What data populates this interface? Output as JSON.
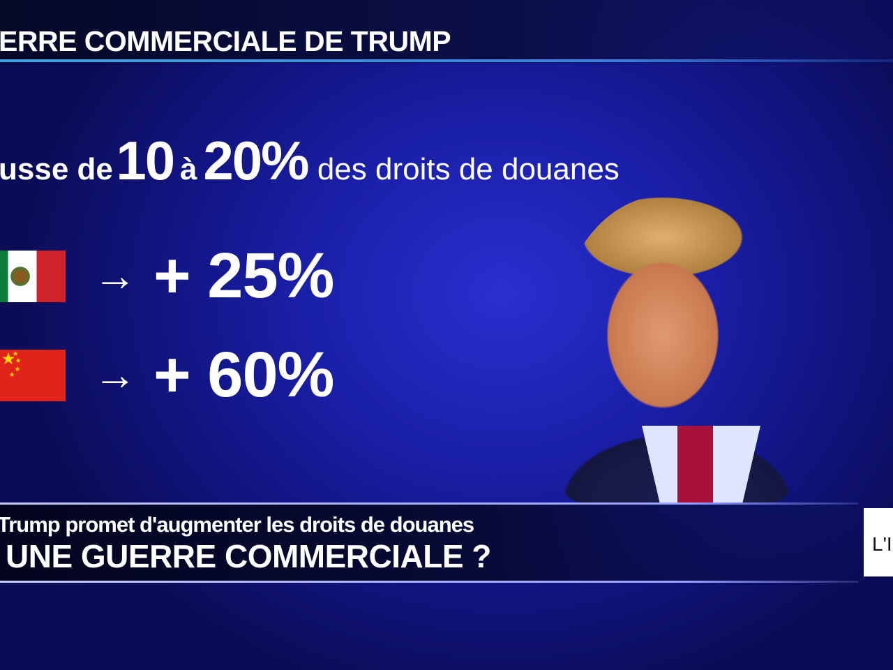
{
  "header": {
    "title": "ERRE COMMERCIALE DE TRUMP"
  },
  "headline": {
    "prefix": "usse de",
    "from": "10",
    "connector": "à",
    "to": "20%",
    "suffix": "des droits de douanes"
  },
  "rows": [
    {
      "country": "Mexique",
      "flag": "mexico-flag",
      "arrow": "→",
      "value": "+ 25%"
    },
    {
      "country": "Chine",
      "flag": "china-flag",
      "arrow": "→",
      "value": "+ 60%"
    }
  ],
  "lower_third": {
    "subtitle": "Trump promet d'augmenter les droits de douanes",
    "title": "UNE GUERRE COMMERCIALE ?"
  },
  "logo": {
    "text": "L'I"
  },
  "colors": {
    "background": "#1a1fa8",
    "accent_line": "#3aa8e8"
  }
}
